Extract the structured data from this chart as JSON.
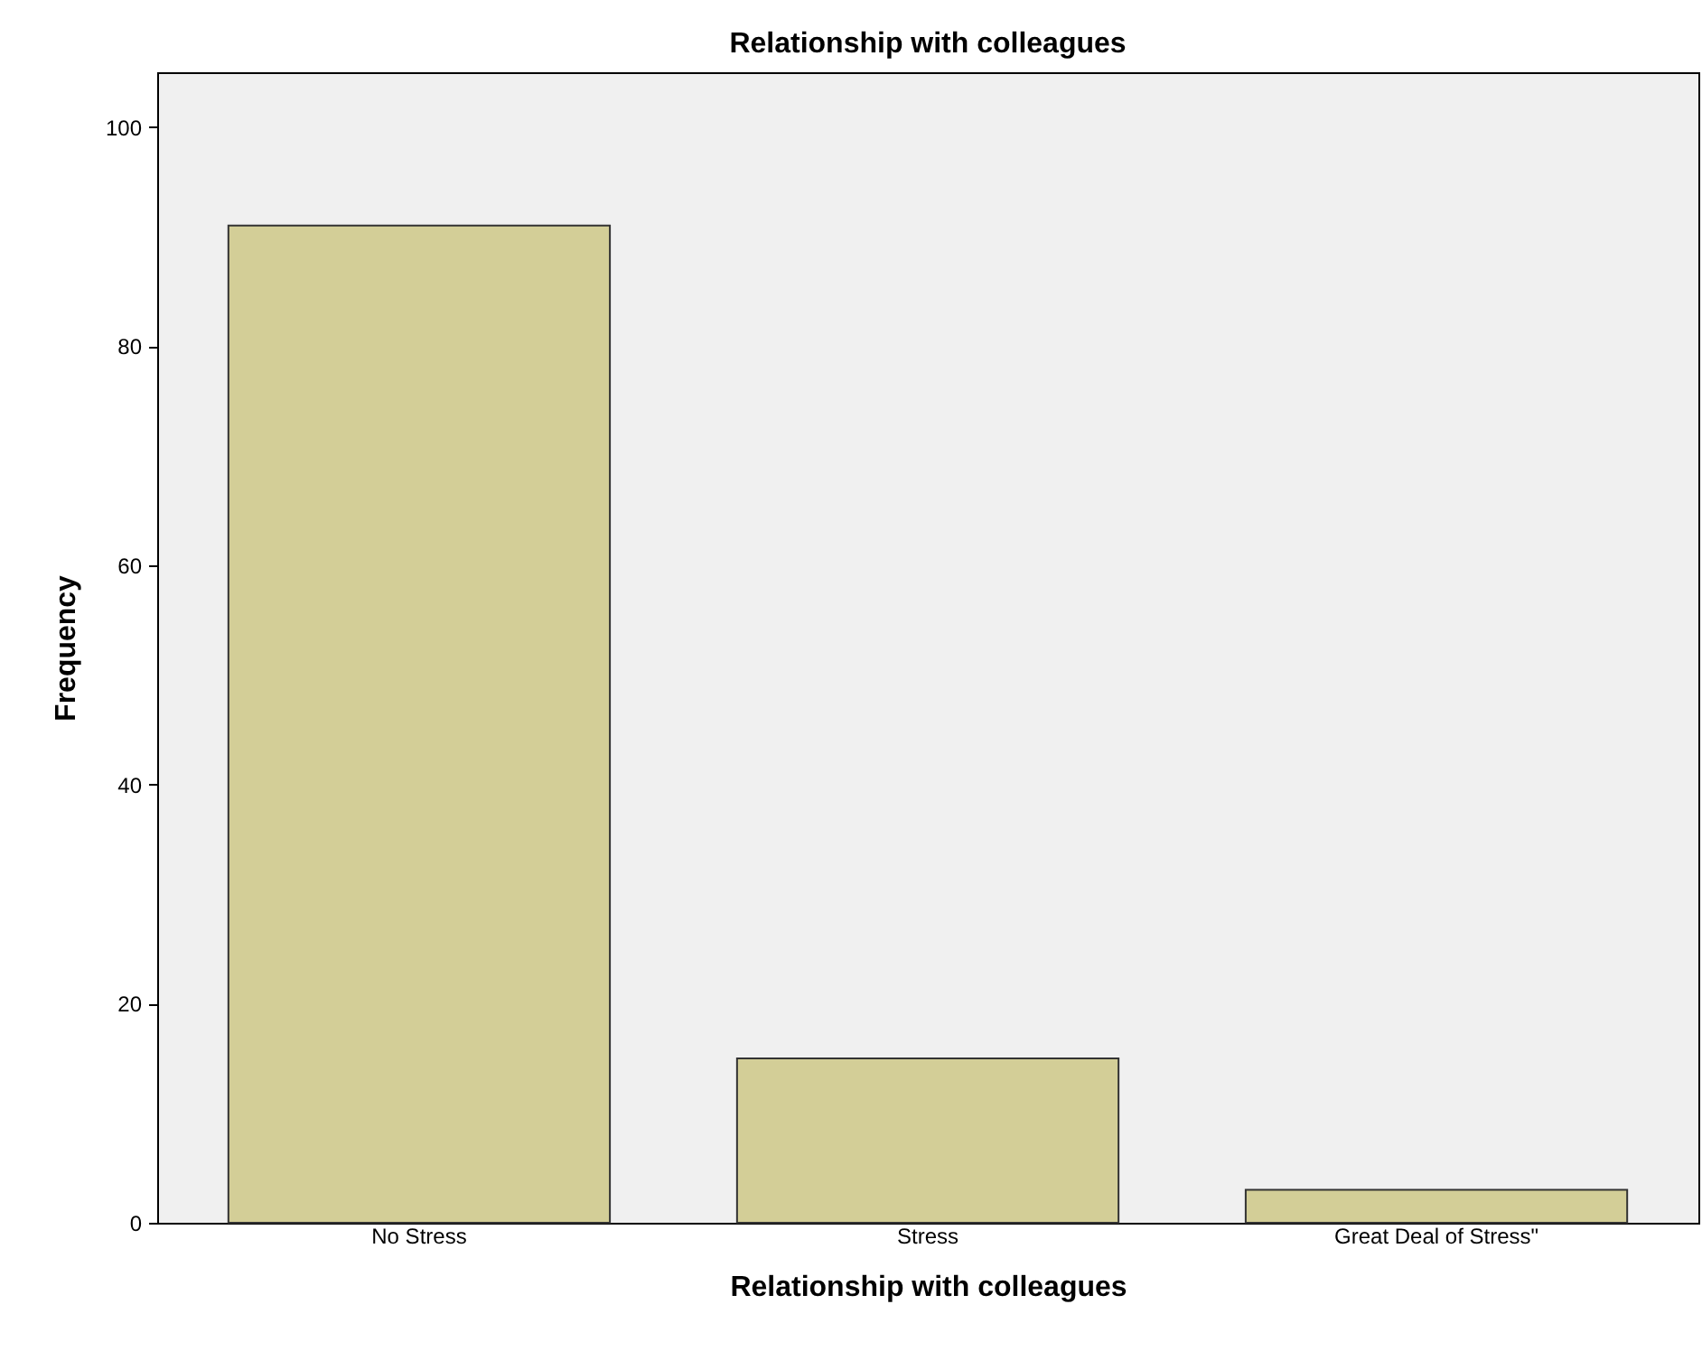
{
  "chart_data": {
    "type": "bar",
    "title": "Relationship with colleagues",
    "xlabel": "Relationship with colleagues",
    "ylabel": "Frequency",
    "categories": [
      "No Stress",
      "Stress",
      "Great Deal of Stress\""
    ],
    "values": [
      91,
      15,
      3
    ],
    "color": "#d3ce97",
    "ylim": [
      0,
      105
    ],
    "yticks": [
      0,
      20,
      40,
      60,
      80,
      100
    ],
    "grid": false
  }
}
